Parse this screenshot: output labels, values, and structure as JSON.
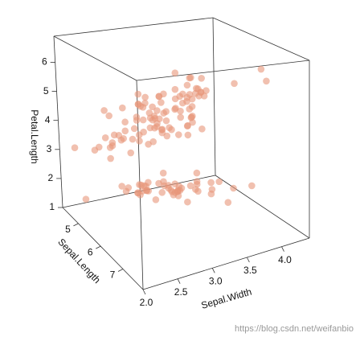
{
  "chart_data": {
    "type": "scatter3d",
    "xlabel": "Sepal.Width",
    "ylabel": "Sepal.Length",
    "zlabel": "Petal.Length",
    "xlim": [
      2.0,
      4.4
    ],
    "ylim": [
      4.3,
      7.9
    ],
    "zlim": [
      1.0,
      6.9
    ],
    "xticks": [
      {
        "value": 2,
        "label": "2.0"
      },
      2.5,
      {
        "value": 3,
        "label": "3.0"
      },
      3.5,
      {
        "value": 4,
        "label": "4.0"
      }
    ],
    "yticks": [
      5,
      6,
      7
    ],
    "zticks": [
      1,
      2,
      3,
      4,
      5,
      6
    ],
    "watermark": "https://blog.csdn.net/weifanbio",
    "series": [
      {
        "color": "#e8967a",
        "x": [
          3.5,
          3.0,
          3.2,
          3.1,
          3.6,
          3.9,
          3.4,
          3.4,
          2.9,
          3.1,
          3.7,
          3.4,
          3.0,
          3.0,
          4.0,
          4.4,
          3.9,
          3.5,
          3.8,
          3.8,
          3.4,
          3.7,
          3.6,
          3.3,
          3.4,
          3.0,
          3.4,
          3.5,
          3.4,
          3.2,
          3.1,
          3.4,
          4.1,
          4.2,
          3.1,
          3.2,
          3.5,
          3.6,
          3.0,
          3.4,
          3.5,
          2.3,
          3.2,
          3.5,
          3.8,
          3.0,
          3.8,
          3.2,
          3.7,
          3.3,
          3.2,
          3.2,
          3.1,
          2.3,
          2.8,
          2.8,
          3.3,
          2.4,
          2.9,
          2.7,
          2.0,
          3.0,
          2.2,
          2.9,
          2.9,
          3.1,
          3.0,
          2.7,
          2.2,
          2.5,
          3.2,
          2.8,
          2.5,
          2.8,
          2.9,
          3.0,
          2.8,
          3.0,
          2.9,
          2.6,
          2.4,
          2.4,
          2.7,
          2.7,
          3.0,
          3.4,
          3.1,
          2.3,
          3.0,
          2.5,
          2.6,
          3.0,
          2.6,
          2.3,
          2.7,
          3.0,
          2.9,
          2.9,
          2.5,
          2.8,
          3.3,
          2.7,
          3.0,
          2.9,
          3.0,
          3.0,
          2.5,
          2.9,
          2.5,
          3.6,
          3.2,
          2.7,
          3.0,
          2.5,
          2.8,
          3.2,
          3.0,
          3.8,
          2.6,
          2.2,
          3.2,
          2.8,
          2.8,
          2.7,
          3.3,
          3.2,
          2.8,
          3.0,
          2.8,
          3.0,
          2.8,
          3.8,
          2.8,
          2.8,
          2.6,
          3.0,
          3.4,
          3.1,
          3.0,
          3.1,
          3.1,
          3.1,
          2.7,
          3.2,
          3.3,
          3.0,
          2.5,
          3.0,
          3.4,
          3.0
        ],
        "y": [
          5.1,
          4.9,
          4.7,
          4.6,
          5.0,
          5.4,
          4.6,
          5.0,
          4.4,
          4.9,
          5.4,
          4.8,
          4.8,
          4.3,
          5.8,
          5.7,
          5.4,
          5.1,
          5.7,
          5.1,
          5.4,
          5.1,
          4.6,
          5.1,
          4.8,
          5.0,
          5.0,
          5.2,
          5.2,
          4.7,
          4.8,
          5.4,
          5.2,
          5.5,
          4.9,
          5.0,
          5.5,
          4.9,
          4.4,
          5.1,
          5.0,
          4.5,
          4.4,
          5.0,
          5.1,
          4.8,
          5.1,
          4.6,
          5.3,
          5.0,
          7.0,
          6.4,
          6.9,
          5.5,
          6.5,
          5.7,
          6.3,
          4.9,
          6.6,
          5.2,
          5.0,
          5.9,
          6.0,
          6.1,
          5.6,
          6.7,
          5.6,
          5.8,
          6.2,
          5.6,
          5.9,
          6.1,
          6.3,
          6.1,
          6.4,
          6.6,
          6.8,
          6.7,
          6.0,
          5.7,
          5.5,
          5.5,
          5.8,
          6.0,
          5.4,
          6.0,
          6.7,
          6.3,
          5.6,
          5.5,
          5.5,
          6.1,
          5.8,
          5.0,
          5.6,
          5.7,
          5.7,
          6.2,
          5.1,
          5.7,
          6.3,
          5.8,
          7.1,
          6.3,
          6.5,
          7.6,
          4.9,
          7.3,
          6.7,
          7.2,
          6.5,
          6.4,
          6.8,
          5.7,
          5.8,
          6.4,
          6.5,
          7.7,
          7.7,
          6.0,
          6.9,
          5.6,
          7.7,
          6.3,
          6.7,
          7.2,
          6.2,
          6.1,
          6.4,
          7.2,
          7.4,
          7.9,
          6.4,
          6.3,
          6.1,
          7.7,
          6.3,
          6.4,
          6.0,
          6.9,
          6.7,
          6.9,
          5.8,
          6.8,
          6.7,
          6.7,
          6.3,
          6.5,
          6.2,
          5.9
        ],
        "z": [
          1.4,
          1.4,
          1.3,
          1.5,
          1.4,
          1.7,
          1.4,
          1.5,
          1.4,
          1.5,
          1.5,
          1.6,
          1.4,
          1.1,
          1.2,
          1.5,
          1.3,
          1.4,
          1.7,
          1.5,
          1.7,
          1.5,
          1.0,
          1.7,
          1.9,
          1.6,
          1.6,
          1.5,
          1.4,
          1.6,
          1.6,
          1.5,
          1.5,
          1.4,
          1.5,
          1.2,
          1.3,
          1.4,
          1.3,
          1.5,
          1.3,
          1.3,
          1.3,
          1.6,
          1.9,
          1.4,
          1.6,
          1.4,
          1.5,
          1.4,
          4.7,
          4.5,
          4.9,
          4.0,
          4.6,
          4.5,
          4.7,
          3.3,
          4.6,
          3.9,
          3.5,
          4.2,
          4.0,
          4.7,
          3.6,
          4.4,
          4.5,
          4.1,
          4.5,
          3.9,
          4.8,
          4.0,
          4.9,
          4.7,
          4.3,
          4.4,
          4.8,
          5.0,
          4.5,
          3.5,
          3.8,
          3.7,
          3.9,
          5.1,
          4.5,
          4.5,
          4.7,
          4.4,
          4.1,
          4.0,
          4.4,
          4.6,
          4.0,
          3.3,
          4.2,
          4.2,
          4.2,
          4.3,
          3.0,
          4.1,
          6.0,
          5.1,
          5.9,
          5.6,
          5.8,
          6.6,
          4.5,
          6.3,
          5.8,
          6.1,
          5.1,
          5.3,
          5.5,
          5.0,
          5.1,
          5.3,
          5.5,
          6.7,
          6.9,
          5.0,
          5.7,
          4.9,
          6.7,
          4.9,
          5.7,
          6.0,
          4.8,
          4.9,
          5.6,
          5.8,
          6.1,
          6.4,
          5.6,
          5.1,
          5.6,
          6.1,
          5.6,
          5.5,
          4.8,
          5.4,
          5.6,
          5.1,
          5.1,
          5.9,
          5.7,
          5.2,
          5.0,
          5.2,
          5.4,
          5.1
        ]
      }
    ]
  }
}
